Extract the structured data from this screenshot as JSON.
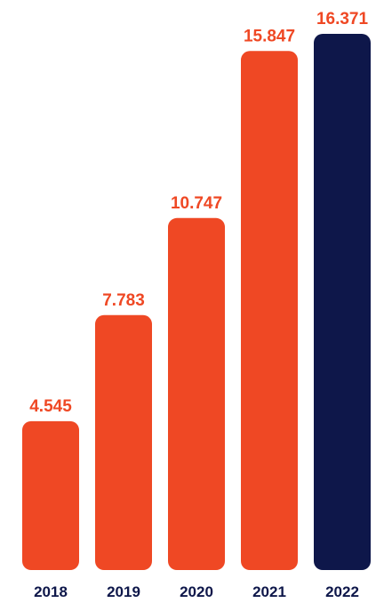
{
  "chart_data": {
    "type": "bar",
    "categories": [
      "2018",
      "2019",
      "2020",
      "2021",
      "2022"
    ],
    "values": [
      4.545,
      7.783,
      10.747,
      15.847,
      16.371
    ],
    "value_labels": [
      "4.545",
      "7.783",
      "10.747",
      "15.847",
      "16.371"
    ],
    "title": "",
    "xlabel": "",
    "ylabel": "",
    "ylim": [
      0,
      16.371
    ],
    "grid": false,
    "legend": "none",
    "colors": {
      "bar": "#EF4824",
      "highlight_bar": "#0E174A",
      "value_label": "#EF4824",
      "tick_label": "#0E174A"
    },
    "highlight_index": 4
  }
}
